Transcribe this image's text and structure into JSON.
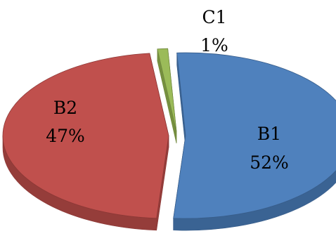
{
  "chart_data": {
    "type": "pie",
    "style": "3d-exploded",
    "title": "",
    "slices": [
      {
        "label": "B1",
        "value": 52,
        "value_label": "52%",
        "color": "#4f81bd",
        "side_color": "#3a6393",
        "edge_color": "#385d8a"
      },
      {
        "label": "B2",
        "value": 47,
        "value_label": "47%",
        "color": "#c0504d",
        "side_color": "#953d3a",
        "edge_color": "#8c3836"
      },
      {
        "label": "C1",
        "value": 1,
        "value_label": "1%",
        "color": "#9bbb59",
        "side_color": "#76903f",
        "edge_color": "#71893f"
      }
    ]
  }
}
